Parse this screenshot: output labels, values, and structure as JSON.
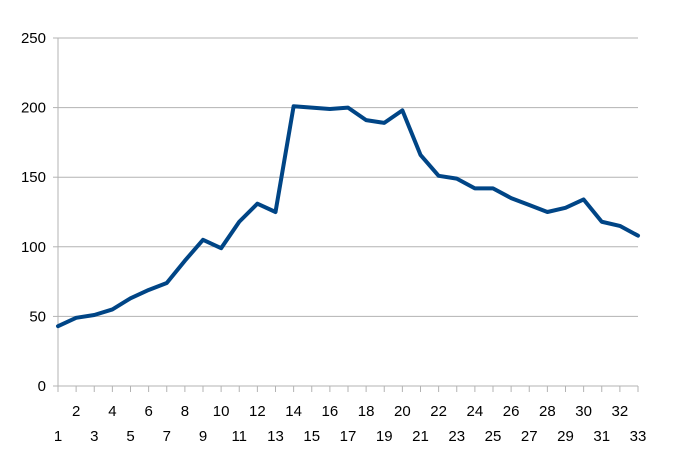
{
  "chart_data": {
    "type": "line",
    "title": "",
    "xlabel": "",
    "ylabel": "",
    "x": [
      1,
      2,
      3,
      4,
      5,
      6,
      7,
      8,
      9,
      10,
      11,
      12,
      13,
      14,
      15,
      16,
      17,
      18,
      19,
      20,
      21,
      22,
      23,
      24,
      25,
      26,
      27,
      28,
      29,
      30,
      31,
      32,
      33
    ],
    "series": [
      {
        "values": [
          43,
          49,
          51,
          55,
          63,
          69,
          74,
          90,
          105,
          99,
          118,
          131,
          125,
          201,
          200,
          199,
          200,
          191,
          189,
          198,
          166,
          151,
          149,
          142,
          142,
          135,
          130,
          125,
          128,
          134,
          118,
          115,
          108
        ]
      }
    ],
    "ylim": [
      0,
      250
    ],
    "yticks": [
      0,
      50,
      100,
      150,
      200,
      250
    ],
    "xtick_labels_top": [
      "2",
      "4",
      "6",
      "8",
      "10",
      "12",
      "14",
      "16",
      "18",
      "20",
      "22",
      "24",
      "26",
      "28",
      "30",
      "32"
    ],
    "xtick_labels_bottom": [
      "1",
      "3",
      "5",
      "7",
      "9",
      "11",
      "13",
      "15",
      "17",
      "19",
      "21",
      "23",
      "25",
      "27",
      "29",
      "31",
      "33"
    ],
    "grid": "horizontal",
    "legend": "none",
    "colors": {
      "line": "#004586",
      "grid": "#b3b3b3",
      "axis": "#b3b3b3"
    }
  }
}
